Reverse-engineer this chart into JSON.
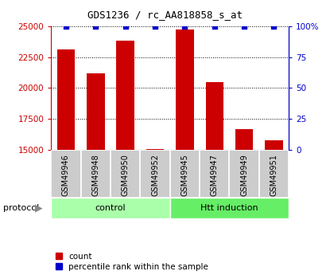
{
  "title": "GDS1236 / rc_AA818858_s_at",
  "samples": [
    "GSM49946",
    "GSM49948",
    "GSM49950",
    "GSM49952",
    "GSM49945",
    "GSM49947",
    "GSM49949",
    "GSM49951"
  ],
  "counts": [
    23100,
    21200,
    23800,
    15050,
    24700,
    20500,
    16700,
    15800
  ],
  "percentile_ranks": [
    100,
    100,
    100,
    100,
    100,
    100,
    100,
    100
  ],
  "ylim_left": [
    15000,
    25000
  ],
  "ylim_right": [
    0,
    100
  ],
  "yticks_left": [
    15000,
    17500,
    20000,
    22500,
    25000
  ],
  "yticks_right": [
    0,
    25,
    50,
    75,
    100
  ],
  "yticklabels_right": [
    "0",
    "25",
    "50",
    "75",
    "100%"
  ],
  "bar_color": "#CC0000",
  "dot_color": "#0000CC",
  "bar_width": 0.6,
  "baseline": 15000,
  "legend_red_label": "count",
  "legend_blue_label": "percentile rank within the sample",
  "protocol_label": "protocol",
  "control_color": "#AAFFAA",
  "htt_color": "#66EE66",
  "sample_box_color": "#CCCCCC",
  "n_control": 4,
  "n_htt": 4
}
